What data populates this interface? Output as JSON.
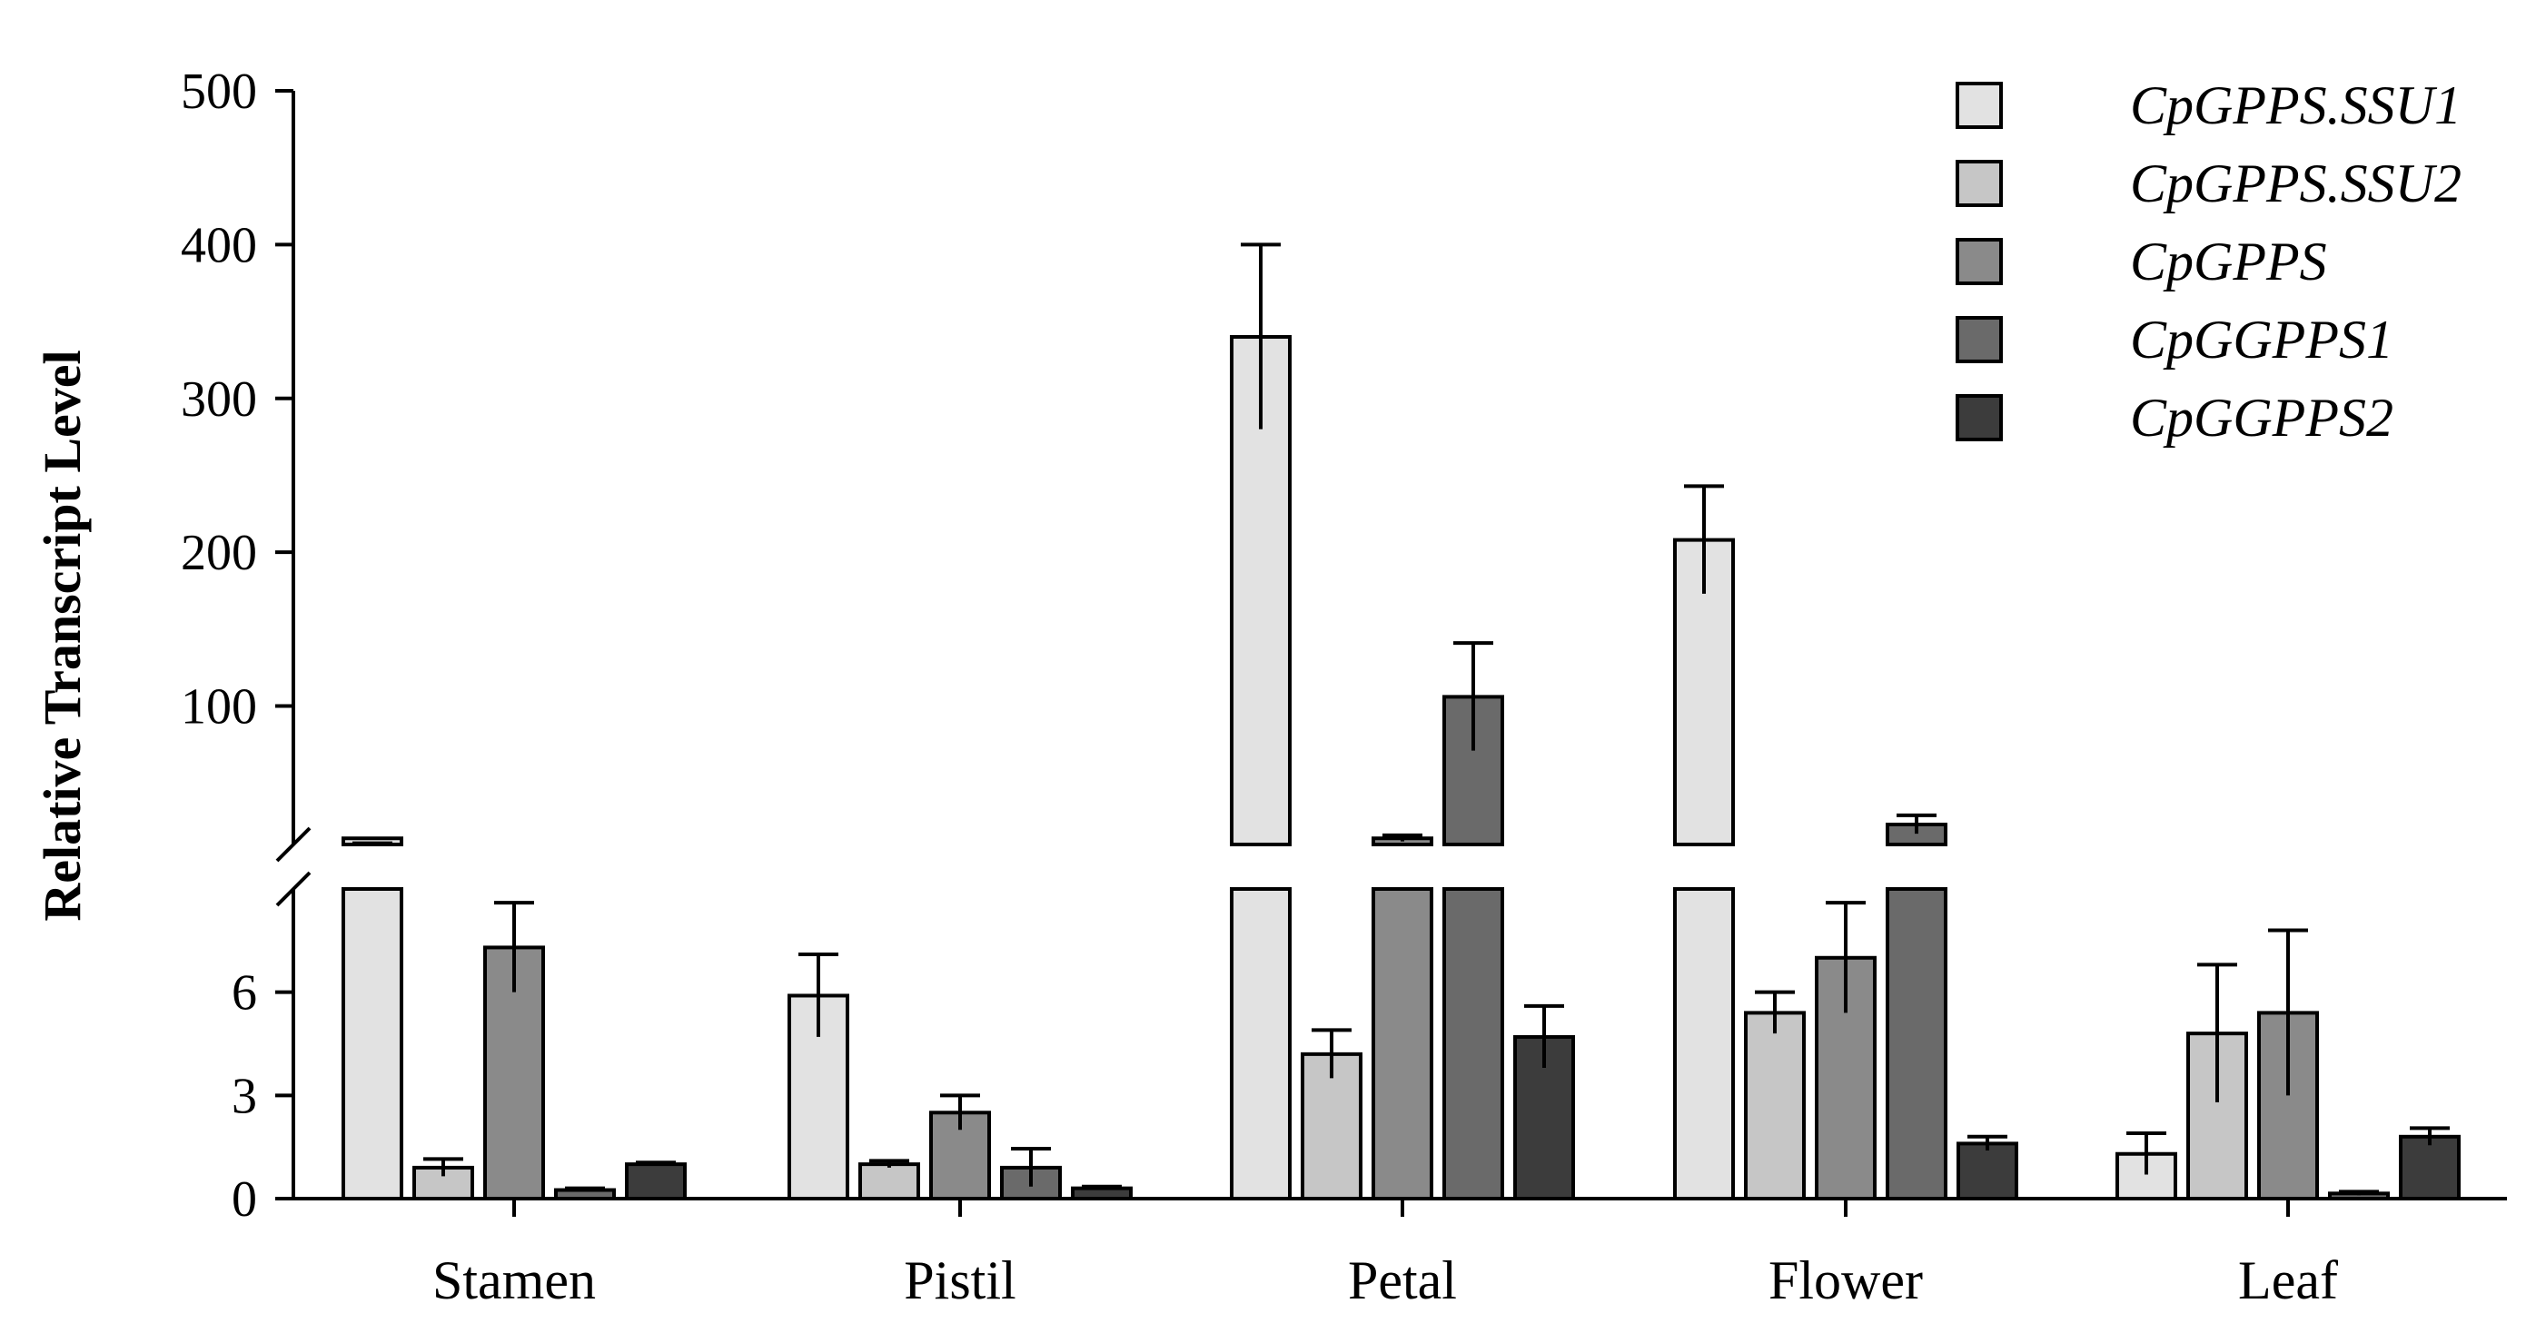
{
  "chart_data": {
    "type": "bar",
    "title": "",
    "xlabel": "",
    "ylabel": "Relative Transcript Level",
    "axis_break": {
      "lower_range": [
        0,
        9
      ],
      "upper_range": [
        10,
        500
      ],
      "lower_ticks": [
        "0",
        "3",
        "6"
      ],
      "upper_ticks": [
        "100",
        "200",
        "300",
        "400",
        "500"
      ]
    },
    "categories": [
      "Stamen",
      "Pistil",
      "Petal",
      "Flower",
      "Leaf"
    ],
    "legend_position": "top-right",
    "series": [
      {
        "name": "CpGPPS.SSU1",
        "color": "#e2e2e2",
        "values": [
          10,
          5.9,
          340,
          208,
          1.3
        ],
        "errors": [
          0.8,
          1.2,
          60,
          35,
          0.6
        ]
      },
      {
        "name": "CpGPPS.SSU2",
        "color": "#c6c6c6",
        "values": [
          0.9,
          1.0,
          4.2,
          5.4,
          4.8
        ],
        "errors": [
          0.25,
          0.1,
          0.7,
          0.6,
          2.0
        ]
      },
      {
        "name": "CpGPPS",
        "color": "#8a8a8a",
        "values": [
          7.3,
          2.5,
          14,
          7.0,
          5.4
        ],
        "errors": [
          1.3,
          0.5,
          2.0,
          1.6,
          2.4
        ]
      },
      {
        "name": "CpGGPPS1",
        "color": "#6a6a6a",
        "values": [
          0.25,
          0.9,
          106,
          23,
          0.15
        ],
        "errors": [
          0.05,
          0.55,
          35,
          6,
          0.05
        ]
      },
      {
        "name": "CpGGPPS2",
        "color": "#3c3c3c",
        "values": [
          1.0,
          0.3,
          4.7,
          1.6,
          1.8
        ],
        "errors": [
          0.05,
          0.05,
          0.9,
          0.2,
          0.25
        ]
      }
    ]
  }
}
